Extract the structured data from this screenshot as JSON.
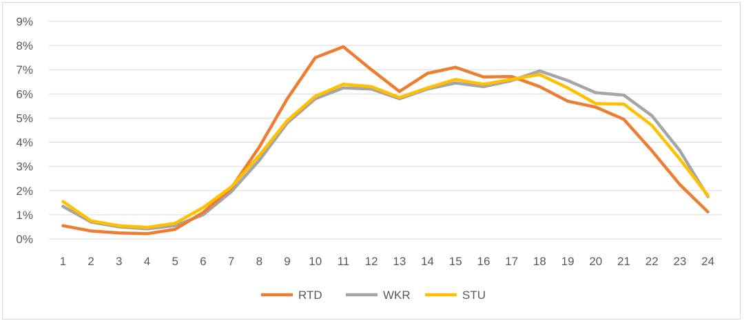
{
  "chart_data": {
    "type": "line",
    "title": "",
    "xlabel": "",
    "ylabel": "",
    "x": [
      1,
      2,
      3,
      4,
      5,
      6,
      7,
      8,
      9,
      10,
      11,
      12,
      13,
      14,
      15,
      16,
      17,
      18,
      19,
      20,
      21,
      22,
      23,
      24
    ],
    "ylim": [
      0,
      9
    ],
    "yticks": [
      0,
      1,
      2,
      3,
      4,
      5,
      6,
      7,
      8,
      9
    ],
    "ytick_labels": [
      "0%",
      "1%",
      "2%",
      "3%",
      "4%",
      "5%",
      "6%",
      "7%",
      "8%",
      "9%"
    ],
    "grid": true,
    "legend_position": "bottom",
    "series": [
      {
        "name": "RTD",
        "color": "#ED7D31",
        "values": [
          0.55,
          0.33,
          0.25,
          0.22,
          0.4,
          1.1,
          2.1,
          3.8,
          5.8,
          7.5,
          7.95,
          7.0,
          6.1,
          6.85,
          7.1,
          6.7,
          6.72,
          6.3,
          5.7,
          5.45,
          4.95,
          3.65,
          2.25,
          1.12
        ]
      },
      {
        "name": "WKR",
        "color": "#A5A5A5",
        "values": [
          1.35,
          0.7,
          0.5,
          0.42,
          0.55,
          1.0,
          1.95,
          3.25,
          4.8,
          5.8,
          6.25,
          6.2,
          5.8,
          6.2,
          6.45,
          6.3,
          6.55,
          6.95,
          6.55,
          6.05,
          5.95,
          5.1,
          3.65,
          1.75
        ]
      },
      {
        "name": "STU",
        "color": "#FFC000",
        "values": [
          1.55,
          0.75,
          0.55,
          0.48,
          0.65,
          1.3,
          2.15,
          3.45,
          4.9,
          5.9,
          6.4,
          6.3,
          5.85,
          6.25,
          6.6,
          6.4,
          6.6,
          6.8,
          6.25,
          5.6,
          5.58,
          4.7,
          3.3,
          1.8
        ]
      }
    ]
  }
}
